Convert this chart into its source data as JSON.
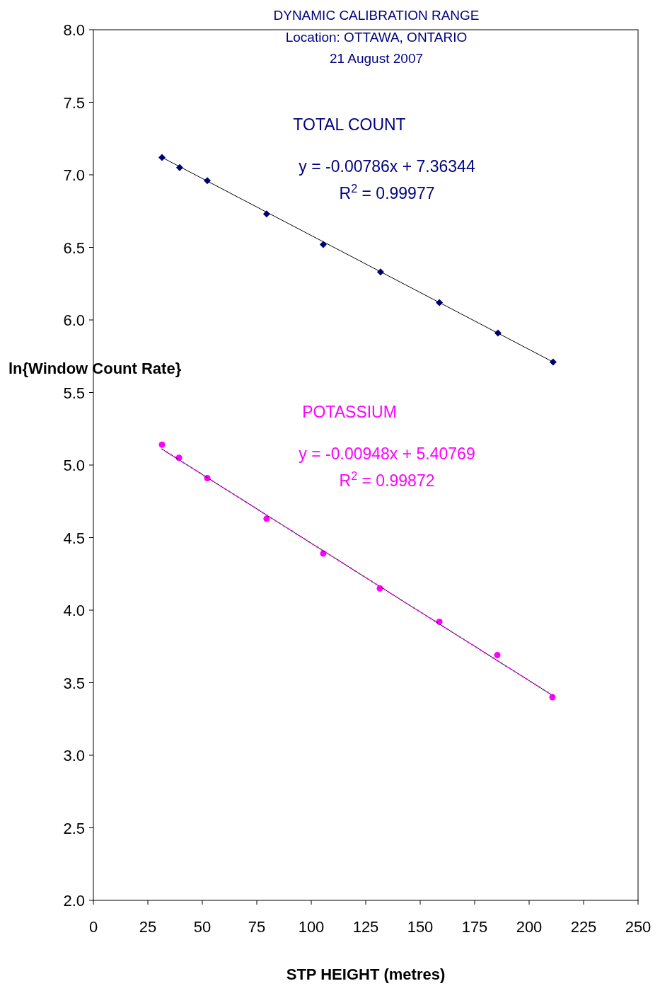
{
  "chart_data": {
    "type": "scatter",
    "title": "DYNAMIC CALIBRATION RANGE",
    "subtitle": "Location: OTTAWA, ONTARIO\n21 August 2007",
    "xlabel": "STP HEIGHT (metres)",
    "ylabel": "ln{Window Count Rate}",
    "xlim": [
      0,
      250
    ],
    "xticks": [
      0,
      25,
      50,
      75,
      100,
      125,
      150,
      175,
      200,
      225,
      250
    ],
    "ylim": [
      2,
      8
    ],
    "yticks": [
      {
        "value": 2,
        "label": "2.0"
      },
      {
        "value": 2.5,
        "label": "2.5"
      },
      {
        "value": 3,
        "label": "3.0"
      },
      {
        "value": 3.5,
        "label": "3.5"
      },
      {
        "value": 4,
        "label": "4.0"
      },
      {
        "value": 4.5,
        "label": "4.5"
      },
      {
        "value": 5,
        "label": "5.0"
      },
      {
        "value": 5.5,
        "label": "5.5"
      },
      {
        "value": 6,
        "label": "6.0"
      },
      {
        "value": 6.5,
        "label": "6.5"
      },
      {
        "value": 7,
        "label": "7.0"
      },
      {
        "value": 7.5,
        "label": "7.5"
      },
      {
        "value": 8,
        "label": "8.0"
      }
    ],
    "grid": false,
    "legend": false,
    "series": [
      {
        "name": "TOTAL COUNT",
        "marker": "diamond",
        "color": "#000080",
        "x": [
          31.5,
          39.6,
          52.3,
          79.5,
          105.5,
          131.8,
          158.8,
          185.7,
          211
        ],
        "values": [
          7.12,
          7.05,
          6.96,
          6.73,
          6.52,
          6.33,
          6.12,
          5.91,
          5.71
        ]
      },
      {
        "type": "line",
        "line_style": "solid",
        "marker": "none",
        "color": "#000000",
        "x": [
          31.5,
          211
        ],
        "values": [
          7.12,
          5.71
        ]
      },
      {
        "name": "POTASSIUM",
        "marker": "circle",
        "color": "#ff00ff",
        "x": [
          31.5,
          39.3,
          52.3,
          79.5,
          105.5,
          131.5,
          158.8,
          185.4,
          210.7
        ],
        "values": [
          5.14,
          5.05,
          4.91,
          4.63,
          4.39,
          4.15,
          3.92,
          3.69,
          3.4
        ]
      },
      {
        "type": "line",
        "line_style": "solid",
        "marker": "none",
        "color": "#000000",
        "x": [
          31.5,
          211
        ],
        "values": [
          5.11,
          3.41
        ]
      },
      {
        "type": "line",
        "line_style": "dotted",
        "marker": "none",
        "color": "#ff00ff",
        "x": [
          31.5,
          211
        ],
        "values": [
          5.11,
          3.41
        ]
      }
    ],
    "annotations": [
      "y = -0.00786x + 7.36344",
      "R$^{2}$ = 0.99977",
      "y = -0.00948x + 5.40769",
      "R$^{2}$ = 0.99872"
    ]
  }
}
